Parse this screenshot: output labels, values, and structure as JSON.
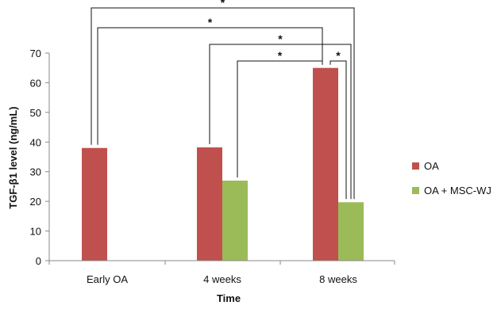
{
  "chart_data": {
    "type": "bar",
    "title": "",
    "xlabel": "Time",
    "ylabel": "TGF-β1 level (ng/mL)",
    "categories": [
      "Early OA",
      "4 weeks",
      "8 weeks"
    ],
    "series": [
      {
        "name": "OA",
        "color": "#c0504d",
        "values": [
          38,
          38.2,
          65
        ]
      },
      {
        "name": "OA + MSC-WJ",
        "color": "#9bbb59",
        "values": [
          null,
          27,
          19.7
        ]
      }
    ],
    "ylim": [
      0,
      70
    ],
    "yticks": [
      0,
      10,
      20,
      30,
      40,
      50,
      60,
      70
    ],
    "grid": false,
    "legend": {
      "position": "right"
    },
    "significance": [
      {
        "from": "Early OA|OA",
        "to": "8 weeks|OA + MSC-WJ",
        "label": "*"
      },
      {
        "from": "Early OA|OA",
        "to": "8 weeks|OA",
        "label": "*"
      },
      {
        "from": "4 weeks|OA",
        "to": "8 weeks|OA + MSC-WJ",
        "label": "*"
      },
      {
        "from": "4 weeks|OA + MSC-WJ",
        "to": "8 weeks|OA",
        "label": "*"
      },
      {
        "from": "8 weeks|OA",
        "to": "8 weeks|OA + MSC-WJ",
        "label": "*"
      }
    ]
  }
}
